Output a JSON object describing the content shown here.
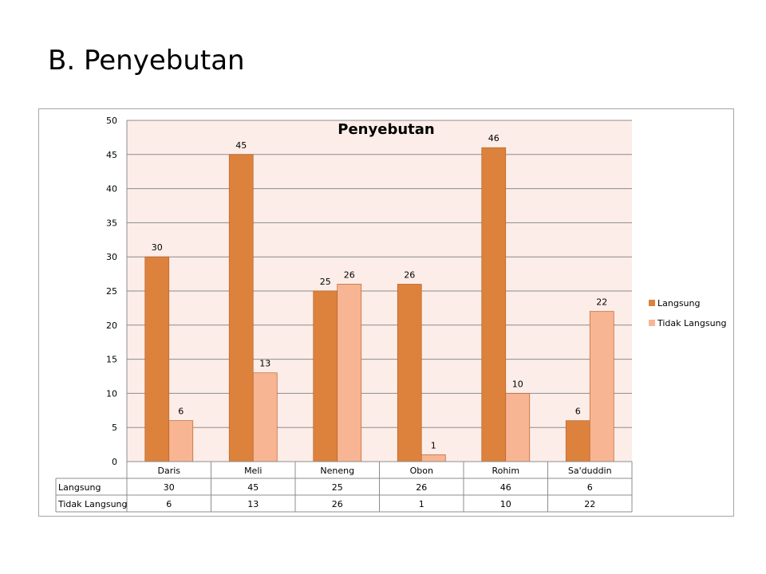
{
  "slide": {
    "title": "B. Penyebutan"
  },
  "chart_data": {
    "type": "bar",
    "title": "Penyebutan",
    "categories": [
      "Daris",
      "Meli",
      "Neneng",
      "Obon",
      "Rohim",
      "Sa'duddin"
    ],
    "series": [
      {
        "name": "Langsung",
        "values": [
          30,
          45,
          25,
          26,
          46,
          6
        ],
        "color": "#DC823D"
      },
      {
        "name": "Tidak Langsung",
        "values": [
          6,
          13,
          26,
          1,
          10,
          22
        ],
        "color": "#F8B593"
      }
    ],
    "ylim": [
      0,
      50
    ],
    "yticks": [
      0,
      5,
      10,
      15,
      20,
      25,
      30,
      35,
      40,
      45,
      50
    ],
    "grid": true,
    "legend_position": "right",
    "data_table": true,
    "plot_background": "#FCEDE8"
  }
}
